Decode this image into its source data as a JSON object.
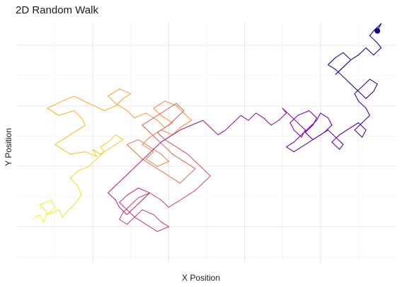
{
  "chart_data": {
    "type": "line",
    "title": "2D Random Walk",
    "xlabel": "X Position",
    "ylabel": "Y Position",
    "xlim": [
      0,
      100
    ],
    "ylim": [
      0,
      100
    ],
    "x_gridlines": [
      20,
      40,
      60,
      80
    ],
    "y_gridlines": [
      15,
      40,
      65,
      90
    ],
    "grid": true,
    "tick_labels_shown": false,
    "color_scale": "plasma",
    "color_mapping": "step order: yellow at start, dark purple at end",
    "end_marker_color": "#0d0887",
    "path": {
      "x": [
        4,
        6,
        7,
        8,
        6,
        9,
        10,
        8,
        11,
        12,
        13,
        15,
        17,
        16,
        14,
        16,
        19,
        21,
        23,
        22,
        24,
        26,
        28,
        25,
        22,
        20,
        21,
        18,
        14,
        12,
        10,
        13,
        16,
        18,
        17,
        15,
        11,
        8,
        12,
        15,
        19,
        23,
        26,
        28,
        30,
        27,
        24,
        26,
        29,
        31,
        34,
        37,
        39,
        41,
        38,
        36,
        39,
        42,
        44,
        46,
        43,
        41,
        38,
        35,
        33,
        36,
        34,
        37,
        40,
        38,
        35,
        32,
        29,
        31,
        33,
        36,
        39,
        41,
        43,
        45,
        47,
        44,
        41,
        39,
        37,
        35,
        33,
        36,
        39,
        42,
        44,
        42,
        40,
        37,
        39,
        42,
        45,
        47,
        49,
        51,
        49,
        47,
        44,
        42,
        40,
        38,
        35,
        32,
        30,
        28,
        27,
        29,
        31,
        33,
        36,
        38,
        40,
        37,
        34,
        31,
        29,
        27,
        29,
        32,
        35,
        33,
        31,
        29,
        27,
        26,
        24,
        26,
        28,
        30,
        32,
        34,
        36,
        38,
        41,
        43,
        46,
        49,
        51,
        53,
        55,
        57,
        59,
        61,
        63,
        65,
        67,
        69,
        71,
        70,
        72,
        74,
        76,
        75,
        73,
        72,
        74,
        77,
        79,
        78,
        76,
        78,
        81,
        83,
        82,
        80,
        79,
        77,
        75,
        73,
        71,
        73,
        76,
        79,
        82,
        84,
        86,
        85,
        83,
        85,
        88,
        90,
        92,
        91,
        89,
        91,
        93,
        92,
        90,
        89,
        91,
        93,
        95,
        94,
        92,
        90,
        88,
        86,
        84,
        82,
        84,
        86,
        88,
        86,
        84,
        86,
        88,
        90,
        92,
        94,
        96,
        95,
        93,
        94,
        96,
        95
      ],
      "y": [
        18,
        20,
        17,
        21,
        24,
        26,
        23,
        20,
        22,
        19,
        21,
        24,
        28,
        32,
        35,
        38,
        40,
        43,
        46,
        48,
        50,
        53,
        51,
        48,
        45,
        47,
        44,
        46,
        45,
        47,
        49,
        52,
        55,
        57,
        60,
        63,
        61,
        64,
        67,
        69,
        66,
        63,
        65,
        68,
        70,
        72,
        69,
        66,
        63,
        60,
        62,
        59,
        56,
        58,
        61,
        64,
        67,
        65,
        62,
        59,
        56,
        53,
        55,
        52,
        49,
        46,
        43,
        40,
        42,
        45,
        48,
        51,
        49,
        46,
        43,
        40,
        37,
        35,
        33,
        36,
        39,
        42,
        45,
        48,
        51,
        54,
        57,
        60,
        63,
        66,
        63,
        60,
        57,
        54,
        51,
        48,
        45,
        42,
        39,
        36,
        33,
        30,
        27,
        25,
        23,
        26,
        29,
        27,
        24,
        21,
        18,
        16,
        19,
        22,
        20,
        17,
        15,
        13,
        16,
        19,
        22,
        25,
        28,
        31,
        29,
        26,
        23,
        20,
        23,
        26,
        29,
        32,
        35,
        38,
        41,
        44,
        47,
        50,
        53,
        55,
        57,
        59,
        56,
        53,
        55,
        58,
        61,
        59,
        62,
        60,
        57,
        59,
        62,
        64,
        61,
        58,
        55,
        52,
        55,
        58,
        61,
        63,
        60,
        57,
        54,
        51,
        54,
        57,
        60,
        62,
        59,
        56,
        53,
        50,
        48,
        46,
        49,
        52,
        55,
        52,
        49,
        47,
        50,
        53,
        56,
        58,
        55,
        52,
        55,
        58,
        61,
        64,
        67,
        70,
        73,
        76,
        74,
        71,
        68,
        71,
        74,
        77,
        80,
        82,
        85,
        87,
        84,
        81,
        78,
        81,
        84,
        86,
        89,
        86,
        89,
        91,
        94,
        96,
        99,
        96
      ]
    }
  }
}
